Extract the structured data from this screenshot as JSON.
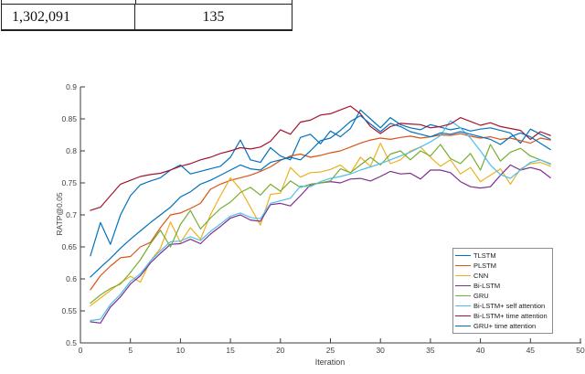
{
  "figure": {
    "table": {
      "rows": [
        [
          "1,302,091",
          "135"
        ]
      ]
    },
    "colors": {
      "axis": "#3b3b3b",
      "tick_text": "#404040",
      "legend_border": "#8c8c8c"
    },
    "chart_data": {
      "type": "line",
      "title": "",
      "xlabel": "Iteration",
      "ylabel": "RATP@0.05",
      "xlim": [
        0,
        50
      ],
      "ylim": [
        0.5,
        0.9
      ],
      "x_ticks": [
        0,
        5,
        10,
        15,
        20,
        25,
        30,
        35,
        40,
        45,
        50
      ],
      "y_ticks": [
        0.5,
        0.55,
        0.6,
        0.65,
        0.7,
        0.75,
        0.8,
        0.85,
        0.9
      ],
      "grid": false,
      "legend_position": "inside lower right",
      "x": [
        1,
        2,
        3,
        4,
        5,
        6,
        7,
        8,
        9,
        10,
        11,
        12,
        13,
        14,
        15,
        16,
        17,
        18,
        19,
        20,
        21,
        22,
        23,
        24,
        25,
        26,
        27,
        28,
        29,
        30,
        31,
        32,
        33,
        34,
        35,
        36,
        37,
        38,
        39,
        40,
        41,
        42,
        43,
        44,
        45,
        46,
        47
      ],
      "series": [
        {
          "name": "TLSTM",
          "color": "#0072BD",
          "values": [
            0.636,
            0.688,
            0.654,
            0.7,
            0.73,
            0.747,
            0.753,
            0.758,
            0.77,
            0.778,
            0.764,
            0.768,
            0.772,
            0.776,
            0.79,
            0.817,
            0.786,
            0.782,
            0.805,
            0.792,
            0.786,
            0.821,
            0.826,
            0.811,
            0.831,
            0.822,
            0.835,
            0.864,
            0.85,
            0.836,
            0.852,
            0.841,
            0.836,
            0.833,
            0.841,
            0.837,
            0.833,
            0.836,
            0.831,
            0.834,
            0.836,
            0.832,
            0.828,
            0.812,
            0.834,
            0.826,
            0.818
          ]
        },
        {
          "name": "PLSTM",
          "color": "#D95319",
          "values": [
            0.583,
            0.605,
            0.62,
            0.633,
            0.635,
            0.65,
            0.657,
            0.68,
            0.7,
            0.703,
            0.71,
            0.718,
            0.74,
            0.748,
            0.754,
            0.758,
            0.762,
            0.768,
            0.775,
            0.785,
            0.792,
            0.795,
            0.79,
            0.793,
            0.797,
            0.8,
            0.806,
            0.812,
            0.817,
            0.82,
            0.818,
            0.821,
            0.823,
            0.82,
            0.822,
            0.825,
            0.824,
            0.827,
            0.823,
            0.82,
            0.822,
            0.818,
            0.82,
            0.816,
            0.812,
            0.82,
            0.817
          ]
        },
        {
          "name": "CNN",
          "color": "#EDB120",
          "values": [
            0.558,
            0.57,
            0.582,
            0.594,
            0.604,
            0.595,
            0.628,
            0.648,
            0.689,
            0.657,
            0.68,
            0.662,
            0.7,
            0.73,
            0.758,
            0.74,
            0.712,
            0.684,
            0.732,
            0.734,
            0.774,
            0.759,
            0.766,
            0.767,
            0.771,
            0.778,
            0.765,
            0.79,
            0.776,
            0.812,
            0.78,
            0.786,
            0.8,
            0.806,
            0.79,
            0.776,
            0.786,
            0.764,
            0.774,
            0.752,
            0.762,
            0.772,
            0.748,
            0.772,
            0.78,
            0.782,
            0.776
          ]
        },
        {
          "name": "Bi-LSTM",
          "color": "#7E2F8E",
          "values": [
            0.533,
            0.531,
            0.556,
            0.572,
            0.592,
            0.605,
            0.625,
            0.64,
            0.654,
            0.655,
            0.662,
            0.655,
            0.67,
            0.682,
            0.695,
            0.7,
            0.692,
            0.69,
            0.716,
            0.718,
            0.714,
            0.73,
            0.747,
            0.75,
            0.752,
            0.75,
            0.756,
            0.757,
            0.753,
            0.76,
            0.768,
            0.764,
            0.765,
            0.756,
            0.77,
            0.77,
            0.766,
            0.752,
            0.744,
            0.742,
            0.744,
            0.762,
            0.778,
            0.77,
            0.774,
            0.77,
            0.758
          ]
        },
        {
          "name": "GRU",
          "color": "#77AC30",
          "values": [
            0.562,
            0.575,
            0.585,
            0.592,
            0.61,
            0.63,
            0.655,
            0.676,
            0.65,
            0.685,
            0.707,
            0.678,
            0.695,
            0.71,
            0.72,
            0.735,
            0.743,
            0.731,
            0.748,
            0.737,
            0.753,
            0.743,
            0.748,
            0.75,
            0.753,
            0.772,
            0.766,
            0.778,
            0.79,
            0.778,
            0.795,
            0.8,
            0.786,
            0.8,
            0.792,
            0.81,
            0.788,
            0.78,
            0.796,
            0.77,
            0.81,
            0.784,
            0.798,
            0.804,
            0.792,
            0.786,
            0.78
          ]
        },
        {
          "name": "Bi-LSTM+ self attention",
          "color": "#4DBEEE",
          "values": [
            0.535,
            0.537,
            0.56,
            0.576,
            0.596,
            0.608,
            0.628,
            0.644,
            0.658,
            0.659,
            0.666,
            0.66,
            0.674,
            0.686,
            0.698,
            0.703,
            0.696,
            0.694,
            0.718,
            0.722,
            0.726,
            0.745,
            0.744,
            0.752,
            0.757,
            0.76,
            0.764,
            0.77,
            0.775,
            0.78,
            0.786,
            0.792,
            0.798,
            0.806,
            0.814,
            0.824,
            0.847,
            0.836,
            0.82,
            0.8,
            0.778,
            0.763,
            0.757,
            0.77,
            0.782,
            0.786,
            0.779
          ]
        },
        {
          "name": "Bi-LSTM+ time attention",
          "color": "#A2142F",
          "values": [
            0.707,
            0.712,
            0.73,
            0.748,
            0.754,
            0.76,
            0.763,
            0.765,
            0.77,
            0.776,
            0.78,
            0.786,
            0.79,
            0.796,
            0.8,
            0.805,
            0.803,
            0.806,
            0.815,
            0.833,
            0.826,
            0.845,
            0.848,
            0.856,
            0.858,
            0.864,
            0.87,
            0.858,
            0.838,
            0.827,
            0.838,
            0.843,
            0.842,
            0.841,
            0.836,
            0.838,
            0.842,
            0.852,
            0.846,
            0.84,
            0.844,
            0.838,
            0.835,
            0.832,
            0.818,
            0.83,
            0.824
          ]
        },
        {
          "name": "GRU+ time attention",
          "color": "#0072BD",
          "values": [
            0.603,
            0.618,
            0.632,
            0.648,
            0.662,
            0.675,
            0.688,
            0.7,
            0.712,
            0.728,
            0.736,
            0.748,
            0.754,
            0.762,
            0.77,
            0.778,
            0.772,
            0.77,
            0.782,
            0.786,
            0.79,
            0.786,
            0.8,
            0.816,
            0.82,
            0.832,
            0.846,
            0.855,
            0.842,
            0.83,
            0.843,
            0.838,
            0.83,
            0.826,
            0.822,
            0.828,
            0.826,
            0.83,
            0.826,
            0.822,
            0.818,
            0.81,
            0.822,
            0.828,
            0.822,
            0.812,
            0.802
          ]
        }
      ]
    }
  }
}
